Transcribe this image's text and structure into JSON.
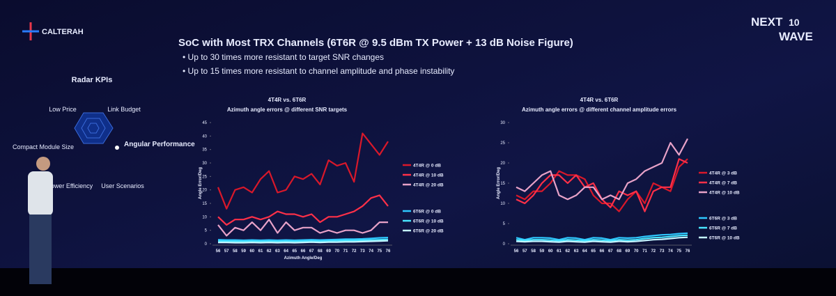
{
  "header": {
    "brand": "CALTERAH",
    "event_top": "NEXT",
    "event_num": "10",
    "event_bottom": "WAVE"
  },
  "slide": {
    "title": "SoC with Most TRX Channels (6T6R @ 9.5 dBm TX Power + 13 dB Noise Figure)",
    "bullets": [
      "Up to 30 times more resistant to target SNR changes",
      "Up to 15 times more resistant to channel amplitude and phase instability"
    ]
  },
  "radar": {
    "title": "Radar KPIs",
    "labels": [
      "Low Price",
      "Link Budget",
      "Angular Performance",
      "User Scenarios",
      "Power Efficiency",
      "Compact Module Size"
    ]
  },
  "chart_data": [
    {
      "type": "line",
      "title": "4T4R vs. 6T6R",
      "subtitle": "Azimuth angle errors @ different SNR targets",
      "x_label": "Azimuth Angle/Deg",
      "y_label": "Angle Error/Deg",
      "x": [
        56,
        57,
        58,
        59,
        60,
        61,
        62,
        63,
        64,
        65,
        66,
        67,
        68,
        69,
        70,
        71,
        72,
        73,
        74,
        75,
        76
      ],
      "xlim": [
        56,
        76
      ],
      "ylim": [
        0,
        45
      ],
      "yticks": [
        0,
        5,
        10,
        15,
        20,
        25,
        30,
        35,
        40,
        45
      ],
      "series": [
        {
          "name": "4T4R @ 0 dB",
          "color": "#d9182a",
          "values": [
            21,
            13,
            20,
            21,
            19,
            24,
            27,
            19,
            20,
            25,
            24,
            26,
            22,
            31,
            29,
            30,
            23,
            41,
            37,
            33,
            38
          ]
        },
        {
          "name": "4T4R @ 10 dB",
          "color": "#ff3048",
          "values": [
            10,
            7,
            9,
            9,
            10,
            9,
            10,
            12,
            11,
            11,
            10,
            11,
            8,
            10,
            10,
            11,
            12,
            14,
            17,
            18,
            14
          ]
        },
        {
          "name": "4T4R @ 20 dB",
          "color": "#e8a2c8",
          "values": [
            7,
            3,
            6,
            5,
            8,
            5,
            9,
            4,
            8,
            5,
            6,
            6,
            4,
            5,
            4,
            5,
            5,
            4,
            5,
            8,
            8
          ]
        },
        {
          "name": "6T6R @ 0 dB",
          "color": "#2ec8ff",
          "values": [
            1.5,
            1.4,
            1.4,
            1.3,
            1.4,
            1.3,
            1.4,
            1.3,
            1.4,
            1.3,
            1.4,
            1.5,
            1.4,
            1.5,
            1.6,
            1.7,
            1.7,
            1.8,
            2,
            2.2,
            2.3
          ]
        },
        {
          "name": "6T6R @ 10 dB",
          "color": "#4ae6ff",
          "values": [
            1,
            0.9,
            0.9,
            0.8,
            0.9,
            0.8,
            0.9,
            0.8,
            0.9,
            0.8,
            0.9,
            1,
            0.9,
            1,
            1.1,
            1.2,
            1.2,
            1.3,
            1.4,
            1.5,
            1.6
          ]
        },
        {
          "name": "6T6R @ 20 dB",
          "color": "#c4f4ff",
          "values": [
            0.5,
            0.5,
            0.4,
            0.4,
            0.5,
            0.4,
            0.5,
            0.4,
            0.5,
            0.4,
            0.5,
            0.6,
            0.5,
            0.6,
            0.6,
            0.7,
            0.7,
            0.8,
            0.9,
            1,
            1.1
          ]
        }
      ]
    },
    {
      "type": "line",
      "title": "4T4R vs. 6T6R",
      "subtitle": "Azimuth angle errors @ different channel amplitude errors",
      "y_label": "Angle Error/Deg",
      "x": [
        56,
        57,
        58,
        59,
        60,
        61,
        62,
        63,
        64,
        65,
        66,
        67,
        68,
        69,
        70,
        71,
        72,
        73,
        74,
        75,
        76
      ],
      "xlim": [
        56,
        76
      ],
      "ylim": [
        0,
        30
      ],
      "yticks": [
        0,
        5,
        10,
        15,
        20,
        25,
        30
      ],
      "series": [
        {
          "name": "4T4R @ 3 dB",
          "color": "#d9182a",
          "values": [
            12,
            11,
            13,
            13,
            15,
            18,
            17,
            17,
            16,
            12,
            10,
            10,
            8,
            11,
            13,
            10,
            15,
            14,
            13,
            19,
            21
          ]
        },
        {
          "name": "4T4R @ 7 dB",
          "color": "#ff3048",
          "values": [
            11,
            10,
            12,
            15,
            17,
            17,
            15,
            17,
            14,
            15,
            11,
            9,
            13,
            12,
            13,
            8,
            13,
            14,
            14,
            21,
            20
          ]
        },
        {
          "name": "4T4R @ 10 dB",
          "color": "#e8a2c8",
          "values": [
            14,
            13,
            15,
            17,
            18,
            12,
            11,
            12,
            14,
            14,
            11,
            12,
            11,
            15,
            16,
            18,
            19,
            20,
            25,
            22,
            26
          ]
        },
        {
          "name": "6T6R @ 3 dB",
          "color": "#2ec8ff",
          "values": [
            1.5,
            1,
            1.5,
            1.5,
            1.4,
            1,
            1.5,
            1.4,
            1,
            1.5,
            1.4,
            1,
            1.5,
            1.4,
            1.5,
            1.8,
            2,
            2.2,
            2.3,
            2.5,
            2.6
          ]
        },
        {
          "name": "6T6R @ 7 dB",
          "color": "#4ae6ff",
          "values": [
            1,
            0.8,
            1,
            1,
            0.9,
            0.7,
            1,
            0.9,
            0.7,
            1,
            0.9,
            0.7,
            1,
            0.9,
            1,
            1.3,
            1.5,
            1.6,
            1.8,
            2,
            2.1
          ]
        },
        {
          "name": "6T6R @ 10 dB",
          "color": "#c4f4ff",
          "values": [
            0.6,
            0.5,
            0.6,
            0.6,
            0.5,
            0.4,
            0.6,
            0.5,
            0.4,
            0.6,
            0.5,
            0.4,
            0.6,
            0.5,
            0.6,
            0.8,
            1,
            1.1,
            1.3,
            1.5,
            1.6
          ]
        }
      ]
    }
  ]
}
